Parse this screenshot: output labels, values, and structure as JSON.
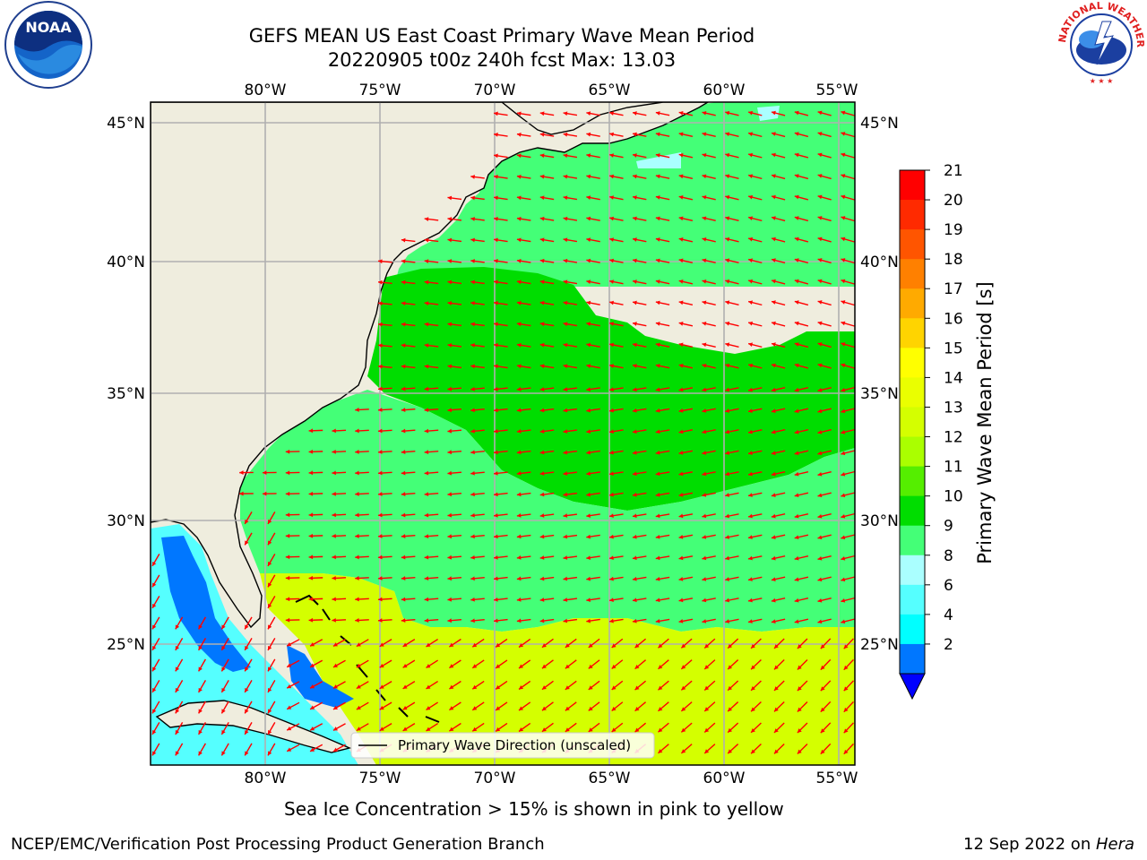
{
  "header": {
    "title_line1": "GEFS MEAN US East Coast Primary Wave Mean Period",
    "title_line2": "20220905 t00z 240h fcst   Max: 13.03"
  },
  "logos": {
    "left": "noaa-logo",
    "left_text": "NOAA",
    "right": "national-weather-service-logo",
    "right_text": "NATIONAL WEATHER SERVICE"
  },
  "map": {
    "lon_ticks": [
      "80°W",
      "75°W",
      "70°W",
      "65°W",
      "60°W",
      "55°W"
    ],
    "lat_ticks": [
      "45°N",
      "40°N",
      "35°N",
      "30°N",
      "25°N"
    ],
    "legend_label": "Primary Wave Direction (unscaled)",
    "land_color": "#efedde",
    "arrow_color": "#ff0000"
  },
  "colorbar": {
    "label": "Primary Wave Mean Period [s]",
    "ticks": [
      "21",
      "20",
      "19",
      "18",
      "17",
      "16",
      "15",
      "14",
      "13",
      "12",
      "11",
      "10",
      "9",
      "8",
      "6",
      "4",
      "2"
    ],
    "colors": [
      "#ff0000",
      "#ff2a00",
      "#ff5500",
      "#ff8000",
      "#ffaa00",
      "#ffd400",
      "#ffff00",
      "#eaff00",
      "#d4ff00",
      "#aaff00",
      "#55ee00",
      "#00dd00",
      "#44ff77",
      "#aaffff",
      "#55ffff",
      "#00ffff",
      "#0077ff"
    ],
    "extend_color": "#0000ff"
  },
  "footer": {
    "sea_ice_note": "Sea Ice Concentration > 15% is shown in pink to yellow",
    "credit_left": "NCEP/EMC/Verification Post Processing Product Generation Branch",
    "credit_date": "12 Sep 2022 on ",
    "credit_host": "Hera"
  }
}
